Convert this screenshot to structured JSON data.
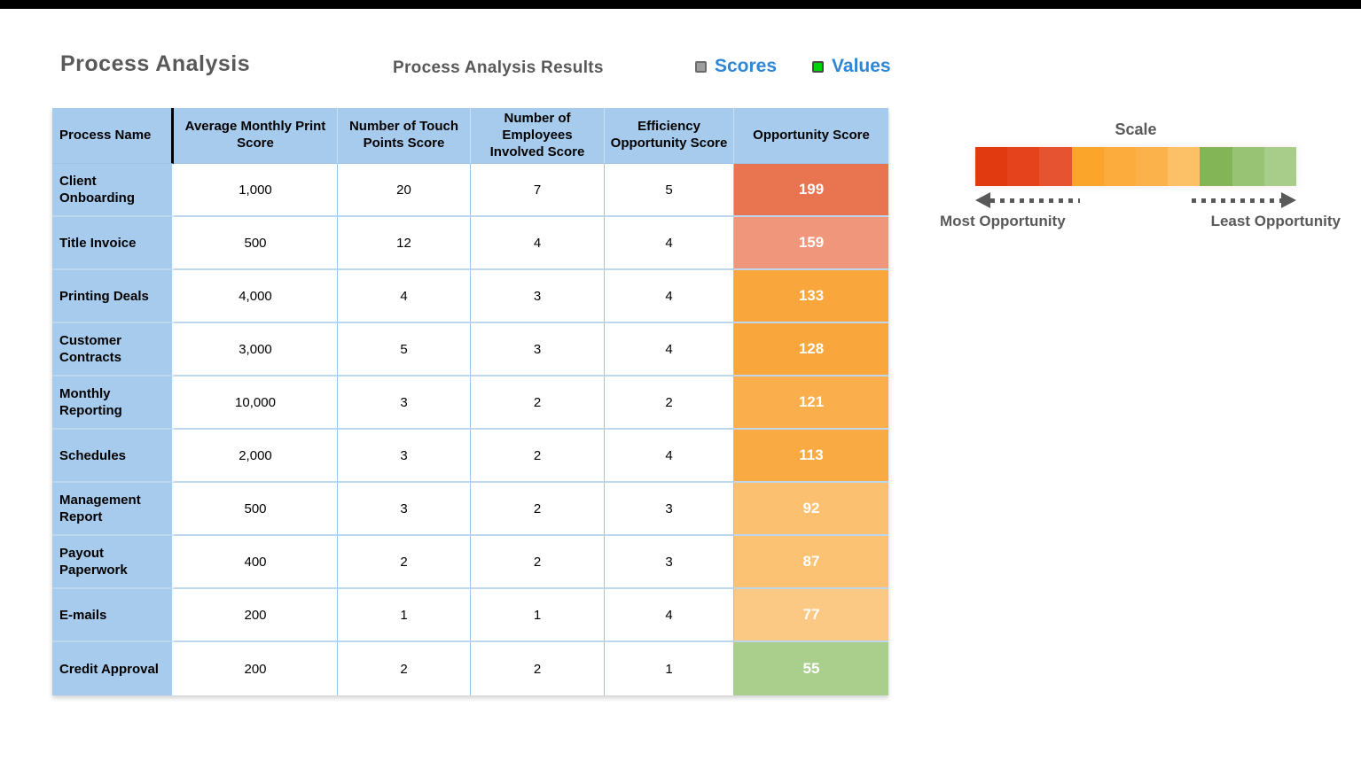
{
  "page": {
    "title": "Process Analysis",
    "subtitle": "Process Analysis Results"
  },
  "legend": {
    "items": [
      {
        "label": "Scores",
        "marker_color": "#9E9E9E",
        "marker_border": "#6B6B6B"
      },
      {
        "label": "Values",
        "marker_color": "#00D30A",
        "marker_border": "#4A4A4A"
      }
    ],
    "text_color": "#2E86D6"
  },
  "chart_data": {
    "type": "table",
    "title": "Process Analysis Results",
    "columns": [
      "Process Name",
      "Average Monthly Print Score",
      "Number of Touch Points Score",
      "Number of Employees Involved Score",
      "Efficiency Opportunity Score",
      "Opportunity Score"
    ],
    "rows": [
      {
        "cells": [
          "Client Onboarding",
          "1,000",
          "20",
          "7",
          "5",
          "199"
        ],
        "score_color": "#E97450"
      },
      {
        "cells": [
          "Title Invoice",
          "500",
          "12",
          "4",
          "4",
          "159"
        ],
        "score_color": "#F0977B"
      },
      {
        "cells": [
          "Printing Deals",
          "4,000",
          "4",
          "3",
          "4",
          "133"
        ],
        "score_color": "#F9A63C"
      },
      {
        "cells": [
          "Customer Contracts",
          "3,000",
          "5",
          "3",
          "4",
          "128"
        ],
        "score_color": "#F9A63C"
      },
      {
        "cells": [
          "Monthly Reporting",
          "10,000",
          "3",
          "2",
          "2",
          "121"
        ],
        "score_color": "#FAAF4C"
      },
      {
        "cells": [
          "Schedules",
          "2,000",
          "3",
          "2",
          "4",
          "113"
        ],
        "score_color": "#FAAA43"
      },
      {
        "cells": [
          "Management Report",
          "500",
          "3",
          "2",
          "3",
          "92"
        ],
        "score_color": "#FBC070"
      },
      {
        "cells": [
          "Payout Paperwork",
          "400",
          "2",
          "2",
          "3",
          "87"
        ],
        "score_color": "#FBC273"
      },
      {
        "cells": [
          "E-mails",
          "200",
          "1",
          "1",
          "4",
          "77"
        ],
        "score_color": "#FCC985"
      },
      {
        "cells": [
          "Credit Approval",
          "200",
          "2",
          "2",
          "1",
          "55"
        ],
        "score_color": "#AACE8C"
      }
    ]
  },
  "scale": {
    "title": "Scale",
    "segments": [
      "#E23A10",
      "#E4431C",
      "#E65330",
      "#FBA52B",
      "#FCAC3D",
      "#FCB24A",
      "#FCC066",
      "#83B557",
      "#98C274",
      "#A8CC8A"
    ],
    "left_label": "Most Opportunity",
    "right_label": "Least Opportunity"
  },
  "colors": {
    "table_header_bg": "#A7CBEC",
    "grid_border_light": "#BDD7EE",
    "grid_border_blue": "#9DC3E6",
    "title_gray": "#595959"
  }
}
